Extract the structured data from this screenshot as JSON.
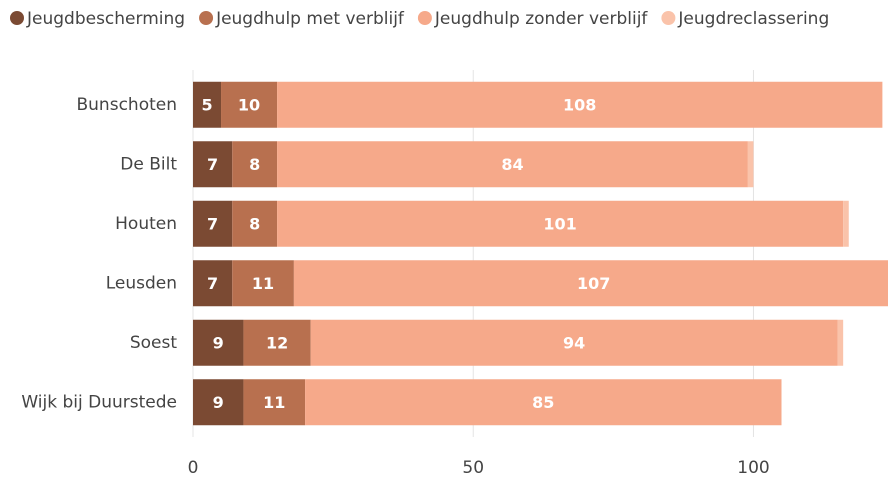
{
  "chart_data": {
    "type": "stacked-barh",
    "categories": [
      "Bunschoten",
      "De Bilt",
      "Houten",
      "Leusden",
      "Soest",
      "Wijk bij Duurstede"
    ],
    "series": [
      {
        "name": "Jeugdbescherming",
        "color": "#7b4a33",
        "values": [
          5,
          7,
          7,
          7,
          9,
          9
        ]
      },
      {
        "name": "Jeugdhulp met verblijf",
        "color": "#b8704f",
        "values": [
          10,
          8,
          8,
          11,
          12,
          11
        ]
      },
      {
        "name": "Jeugdhulp zonder verblijf",
        "color": "#f6a98a",
        "values": [
          108,
          84,
          101,
          107,
          94,
          85
        ]
      },
      {
        "name": "Jeugdreclassering",
        "color": "#fac3aa",
        "values": [
          0,
          1,
          1,
          0,
          1,
          0
        ]
      }
    ],
    "xlim": [
      0,
      124
    ],
    "xticks": [
      0,
      50,
      100
    ],
    "grid": true,
    "legend": "top-left"
  }
}
